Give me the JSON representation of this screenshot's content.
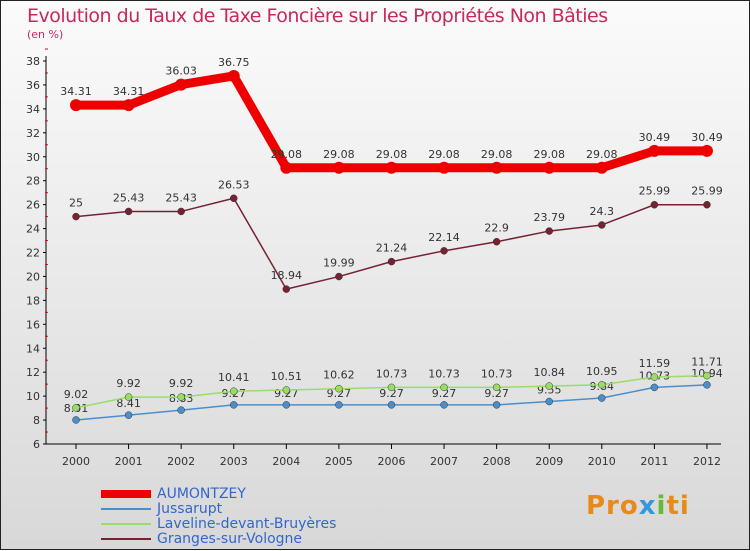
{
  "title": "Evolution du Taux de Taxe Foncière sur les Propriétés Non Bâties",
  "subtitle": "(en %)",
  "logo": "Proxiti",
  "chart_data": {
    "type": "line",
    "title": "Evolution du Taux de Taxe Foncière sur les Propriétés Non Bâties",
    "ylabel": "(en %)",
    "ylim": [
      6,
      38
    ],
    "yticks": [
      6,
      8,
      10,
      12,
      14,
      16,
      18,
      20,
      22,
      24,
      26,
      28,
      30,
      32,
      34,
      36,
      38
    ],
    "x": [
      "2000",
      "2001",
      "2002",
      "2003",
      "2004",
      "2005",
      "2006",
      "2007",
      "2008",
      "2009",
      "2010",
      "2011",
      "2012"
    ],
    "legend_position": "bottom-left",
    "series": [
      {
        "name": "AUMONTZEY",
        "color": "#ee0000",
        "values": [
          34.31,
          34.31,
          36.03,
          36.75,
          29.08,
          29.08,
          29.08,
          29.08,
          29.08,
          29.08,
          29.08,
          30.49,
          30.49
        ]
      },
      {
        "name": "Jussarupt",
        "color": "#4a8fcc",
        "values": [
          8.01,
          8.41,
          8.83,
          9.27,
          9.27,
          9.27,
          9.27,
          9.27,
          9.27,
          9.55,
          9.84,
          10.73,
          10.94
        ]
      },
      {
        "name": "Laveline-devant-Bruyères",
        "color": "#99dd66",
        "values": [
          9.02,
          9.92,
          9.92,
          10.41,
          10.51,
          10.62,
          10.73,
          10.73,
          10.73,
          10.84,
          10.95,
          11.59,
          11.71
        ]
      },
      {
        "name": "Granges-sur-Vologne",
        "color": "#772233",
        "values": [
          25,
          25.43,
          25.43,
          26.53,
          18.94,
          19.99,
          21.24,
          22.14,
          22.9,
          23.79,
          24.3,
          25.99,
          25.99
        ]
      }
    ]
  }
}
